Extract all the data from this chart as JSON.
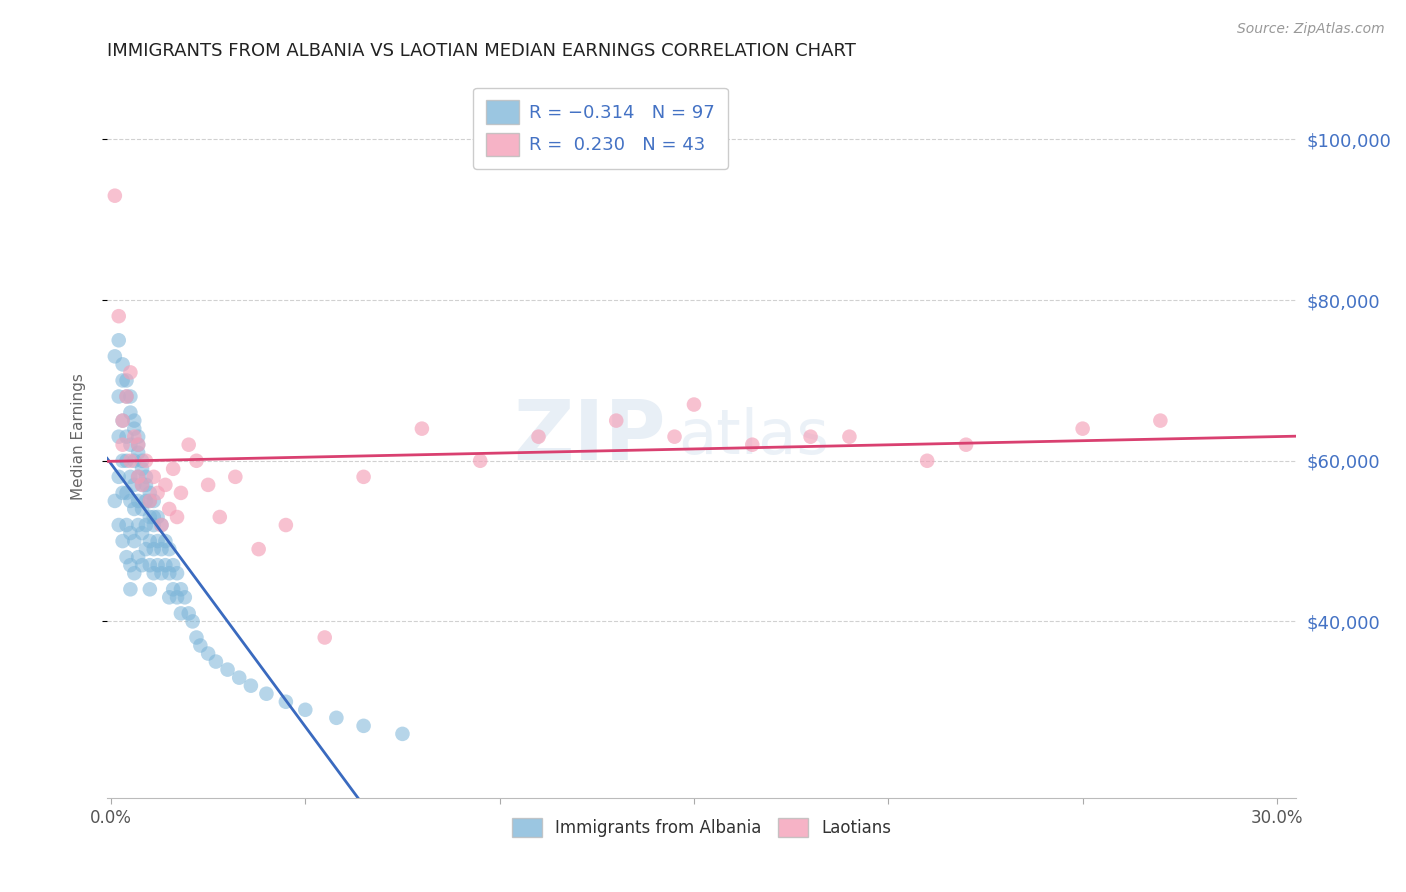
{
  "title": "IMMIGRANTS FROM ALBANIA VS LAOTIAN MEDIAN EARNINGS CORRELATION CHART",
  "source": "Source: ZipAtlas.com",
  "ylabel": "Median Earnings",
  "ytick_labels": [
    "$40,000",
    "$60,000",
    "$80,000",
    "$100,000"
  ],
  "ytick_values": [
    40000,
    60000,
    80000,
    100000
  ],
  "ymin": 18000,
  "ymax": 108000,
  "xmin": -0.001,
  "xmax": 0.305,
  "legend_label1": "Immigrants from Albania",
  "legend_label2": "Laotians",
  "watermark_zip": "ZIP",
  "watermark_atlas": "atlas",
  "albania_color": "#7ab4d8",
  "laotian_color": "#f4a0b8",
  "albania_line_color": "#3a6abf",
  "laotian_line_color": "#d94070",
  "background_color": "#ffffff",
  "grid_color": "#cccccc",
  "title_color": "#222222",
  "right_axis_color": "#4472c4",
  "albania_x": [
    0.001,
    0.001,
    0.002,
    0.002,
    0.002,
    0.002,
    0.003,
    0.003,
    0.003,
    0.003,
    0.003,
    0.004,
    0.004,
    0.004,
    0.004,
    0.004,
    0.004,
    0.005,
    0.005,
    0.005,
    0.005,
    0.005,
    0.005,
    0.005,
    0.006,
    0.006,
    0.006,
    0.006,
    0.006,
    0.006,
    0.007,
    0.007,
    0.007,
    0.007,
    0.007,
    0.008,
    0.008,
    0.008,
    0.008,
    0.008,
    0.009,
    0.009,
    0.009,
    0.009,
    0.01,
    0.01,
    0.01,
    0.01,
    0.01,
    0.011,
    0.011,
    0.011,
    0.011,
    0.012,
    0.012,
    0.012,
    0.013,
    0.013,
    0.013,
    0.014,
    0.014,
    0.015,
    0.015,
    0.015,
    0.016,
    0.016,
    0.017,
    0.017,
    0.018,
    0.018,
    0.019,
    0.02,
    0.021,
    0.022,
    0.023,
    0.025,
    0.027,
    0.03,
    0.033,
    0.036,
    0.04,
    0.045,
    0.05,
    0.058,
    0.065,
    0.075,
    0.002,
    0.003,
    0.004,
    0.005,
    0.006,
    0.007,
    0.007,
    0.008,
    0.009,
    0.01,
    0.011
  ],
  "albania_y": [
    73000,
    55000,
    68000,
    63000,
    58000,
    52000,
    70000,
    65000,
    60000,
    56000,
    50000,
    68000,
    63000,
    60000,
    56000,
    52000,
    48000,
    66000,
    62000,
    58000,
    55000,
    51000,
    47000,
    44000,
    64000,
    60000,
    57000,
    54000,
    50000,
    46000,
    62000,
    58000,
    55000,
    52000,
    48000,
    60000,
    57000,
    54000,
    51000,
    47000,
    58000,
    55000,
    52000,
    49000,
    56000,
    53000,
    50000,
    47000,
    44000,
    55000,
    52000,
    49000,
    46000,
    53000,
    50000,
    47000,
    52000,
    49000,
    46000,
    50000,
    47000,
    49000,
    46000,
    43000,
    47000,
    44000,
    46000,
    43000,
    44000,
    41000,
    43000,
    41000,
    40000,
    38000,
    37000,
    36000,
    35000,
    34000,
    33000,
    32000,
    31000,
    30000,
    29000,
    28000,
    27000,
    26000,
    75000,
    72000,
    70000,
    68000,
    65000,
    63000,
    61000,
    59000,
    57000,
    55000,
    53000
  ],
  "laotian_x": [
    0.001,
    0.002,
    0.003,
    0.003,
    0.004,
    0.005,
    0.005,
    0.006,
    0.007,
    0.007,
    0.008,
    0.009,
    0.01,
    0.011,
    0.012,
    0.013,
    0.014,
    0.015,
    0.016,
    0.017,
    0.018,
    0.02,
    0.022,
    0.025,
    0.028,
    0.032,
    0.038,
    0.045,
    0.055,
    0.065,
    0.08,
    0.095,
    0.11,
    0.13,
    0.15,
    0.18,
    0.21,
    0.25,
    0.27,
    0.145,
    0.165,
    0.19,
    0.22
  ],
  "laotian_y": [
    93000,
    78000,
    65000,
    62000,
    68000,
    71000,
    60000,
    63000,
    58000,
    62000,
    57000,
    60000,
    55000,
    58000,
    56000,
    52000,
    57000,
    54000,
    59000,
    53000,
    56000,
    62000,
    60000,
    57000,
    53000,
    58000,
    49000,
    52000,
    38000,
    58000,
    64000,
    60000,
    63000,
    65000,
    67000,
    63000,
    60000,
    64000,
    65000,
    63000,
    62000,
    63000,
    62000
  ]
}
